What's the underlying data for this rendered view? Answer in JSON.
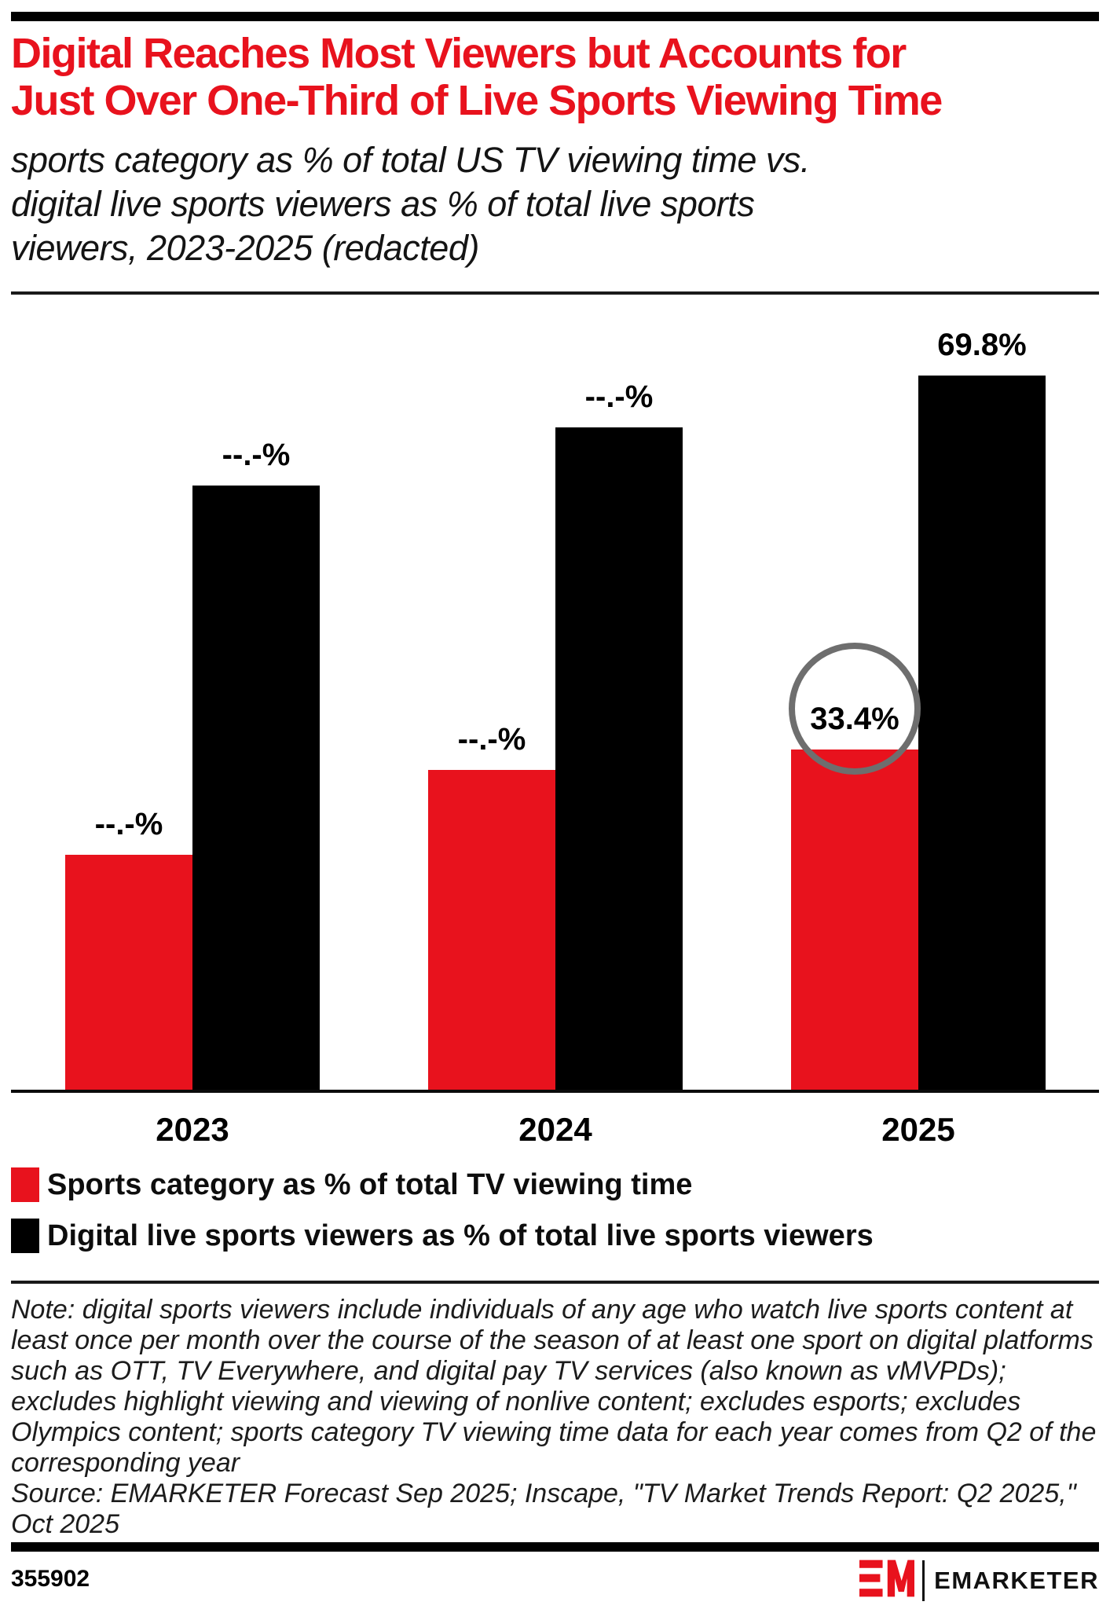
{
  "colors": {
    "accent_red": "#e8121d",
    "bar_black": "#000000",
    "circle_gray": "#6e6e6e"
  },
  "header": {
    "title_lines": [
      "Digital Reaches Most Viewers but Accounts for",
      "Just Over One-Third of Live Sports Viewing Time"
    ],
    "subtitle_lines": [
      "sports category as % of total US TV viewing time vs.",
      "digital live sports viewers as % of total live sports",
      "viewers, 2023-2025 (redacted)"
    ]
  },
  "chart_data": {
    "type": "bar",
    "categories": [
      "2023",
      "2024",
      "2025"
    ],
    "series": [
      {
        "name": "Sports category as % of total TV viewing time",
        "color": "#e8121d",
        "values_display": [
          "--.-%",
          "--.-%",
          "33.4%"
        ],
        "values_estimated": [
          23.1,
          31.4,
          33.4
        ]
      },
      {
        "name": "Digital live sports viewers as % of total live sports viewers",
        "color": "#000000",
        "values_display": [
          "--.-%",
          "--.-%",
          "69.8%"
        ],
        "values_estimated": [
          59.1,
          64.8,
          69.8
        ]
      }
    ],
    "ylim": [
      0,
      75
    ],
    "grid": false,
    "axis_labels_shown": false,
    "legend_position": "below",
    "annotation": {
      "type": "circle-highlight",
      "target": "2025 sports-category value label",
      "label": "33.4%"
    }
  },
  "note": "Note: digital sports viewers include individuals of any age who watch live sports content at least once per month over the course of the season of at least one sport on digital platforms such as OTT, TV Everywhere, and digital pay TV services (also known as vMVPDs); excludes highlight viewing and viewing of nonlive content; excludes esports; excludes Olympics content; sports category TV viewing time data for each year comes from Q2 of the corresponding year",
  "source": "Source: EMARKETER Forecast Sep 2025; Inscape, \"TV Market Trends Report: Q2 2025,\" Oct 2025",
  "footer": {
    "chart_id": "355902",
    "logo_mark": "EM",
    "logo_text": "EMARKETER"
  }
}
